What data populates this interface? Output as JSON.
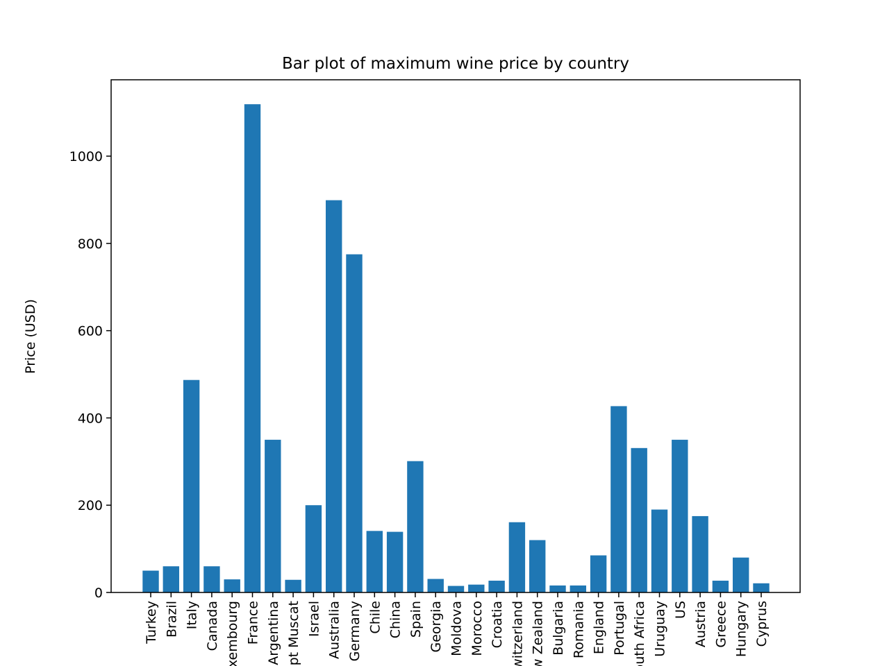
{
  "chart_data": {
    "type": "bar",
    "title": "Bar plot of maximum wine price by country",
    "xlabel": "",
    "ylabel": "Price (USD)",
    "ylim": [
      0,
      1175
    ],
    "yticks": [
      0,
      200,
      400,
      600,
      800,
      1000
    ],
    "categories": [
      "Turkey",
      "Brazil",
      "Italy",
      "Canada",
      "Luxembourg",
      "France",
      "Argentina",
      "Egypt Muscat",
      "Israel",
      "Australia",
      "Germany",
      "Chile",
      "China",
      "Spain",
      "Georgia",
      "Moldova",
      "Morocco",
      "Croatia",
      "Switzerland",
      "New Zealand",
      "Bulgaria",
      "Romania",
      "England",
      "Portugal",
      "South Africa",
      "Uruguay",
      "US",
      "Austria",
      "Greece",
      "Hungary",
      "Cyprus"
    ],
    "values": [
      50,
      60,
      487,
      60,
      30,
      1119,
      350,
      29,
      200,
      899,
      775,
      141,
      139,
      301,
      31,
      15,
      18,
      27,
      161,
      120,
      16,
      16,
      85,
      427,
      331,
      190,
      350,
      175,
      27,
      80,
      21
    ],
    "bar_color": "#1f77b4",
    "grid": false,
    "legend": "none"
  }
}
